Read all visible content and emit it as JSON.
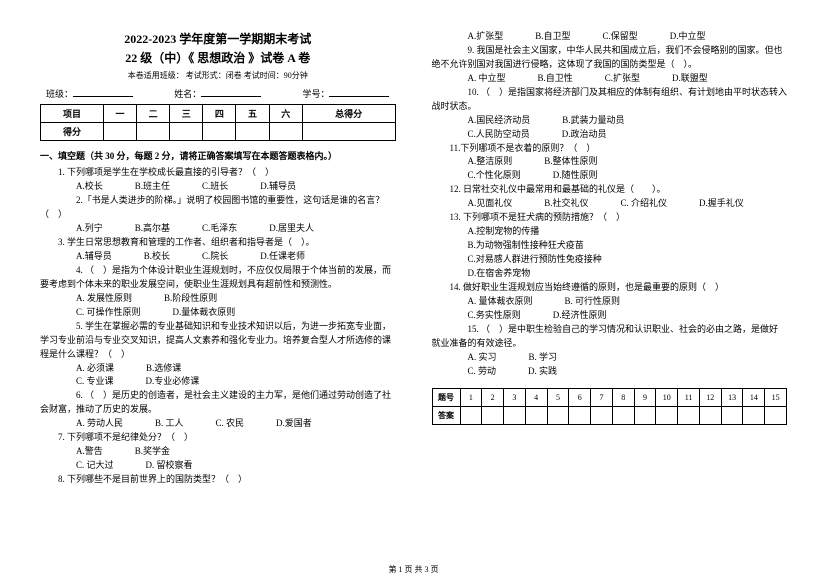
{
  "header": {
    "title1": "2022-2023 学年度第一学期期末考试",
    "title2": "22 级（中）《 思想政治 》试卷 A 卷",
    "meta": "本卷适用班级：        考试形式：闭卷    考试时间：90分钟",
    "class_label": "班级：",
    "name_label": "姓名：",
    "id_label": "学号："
  },
  "score_table": {
    "row_head": "项目",
    "cols": [
      "一",
      "二",
      "三",
      "四",
      "五",
      "六",
      "总得分"
    ],
    "row2_head": "得分"
  },
  "section1_head": "一、填空题（共 30 分，每题 2 分，请将正确答案填写在本题答题表格内。）",
  "left_questions": [
    {
      "stem": "1. 下列哪项是学生在学校成长最直接的引导者？（　）",
      "opts": [
        "A.校长",
        "B.班主任",
        "C.班长",
        "D.辅导员"
      ]
    },
    {
      "stem": "2.「书是人类进步的阶梯。」说明了校园图书馆的重要性，这句话是谁的名言？（　）",
      "wrap": true,
      "opts": [
        "A.列宁",
        "B.高尔基",
        "C.毛泽东",
        "D.居里夫人"
      ]
    },
    {
      "stem": "3. 学生日常思想教育和管理的工作者、组织者和指导者是（　）。",
      "opts": [
        "A.辅导员",
        "B.校长",
        "C.院长",
        "D.任课老师"
      ]
    },
    {
      "stem": "4. （　）是指为个体设计职业生涯规划时，不应仅仅局限于个体当前的发展，而要考虑到个体未来的职业发展空间，使职业生涯规划具有超前性和预测性。",
      "wrap": true,
      "opts": [
        "A. 发展性原则",
        "B.阶段性原则",
        "",
        "",
        "C. 可操作性原则",
        "D.量体裁衣原则"
      ]
    },
    {
      "stem": "5. 学生在掌握必需的专业基础知识和专业技术知识以后，为进一步拓宽专业面，学习专业前沿与专业交叉知识，提高人文素养和强化专业力。培养复合型人才所选修的课程是什么课程？（　）",
      "wrap": true,
      "opts": [
        "A. 必须课",
        "B.选修课",
        "",
        "",
        "C. 专业课",
        "D.专业必修课"
      ]
    },
    {
      "stem": "6. （　）是历史的创造者，是社会主义建设的主力军，是他们通过劳动创造了社会财富，推动了历史的发展。",
      "wrap": true,
      "opts": [
        "A. 劳动人民",
        "B. 工人",
        "C. 农民",
        "D.爱国者"
      ]
    },
    {
      "stem": "7. 下列哪项不是纪律处分？（　）",
      "opts": [
        "A.警告",
        "B.奖学金",
        "",
        "",
        "C. 记大过",
        "D. 留校察看"
      ]
    },
    {
      "stem": "8. 下列哪些不是目前世界上的国防类型？（　）"
    }
  ],
  "right_questions": [
    {
      "opts_only": true,
      "opts": [
        "A.扩张型",
        "B.自卫型",
        "C.保留型",
        "D.中立型"
      ]
    },
    {
      "stem": "9. 我国是社会主义国家，中华人民共和国成立后，我们不会侵略别的国家。但也绝不允许别国对我国进行侵略，这体现了我国的国防类型是（　）。",
      "wrap": true,
      "opts": [
        "A. 中立型",
        "B.自卫性",
        "C.扩张型",
        "D.联盟型"
      ]
    },
    {
      "stem": "10. （　）是指国家将经济部门及其相应的体制有组织、有计划地由平时状态转入战时状态。",
      "wrap": true,
      "opts": [
        "A.国民经济动员",
        "B.武装力量动员",
        "",
        "",
        "C.人民防空动员",
        "D.政治动员"
      ]
    },
    {
      "stem": "11.下列哪项不是衣着的原则？（　）",
      "opts": [
        "A.整洁原则",
        "B.整体性原则",
        "",
        "",
        "C.个性化原则",
        "D.随性原则"
      ]
    },
    {
      "stem": "12. 日常社交礼仪中最常用和最基础的礼仪是（　　）。",
      "opts": [
        "A.见面礼仪",
        "B.社交礼仪",
        "C. 介绍礼仪",
        "D.握手礼仪"
      ]
    },
    {
      "stem": "13. 下列哪项不是狂犬病的预防措施？（　）",
      "opts": [
        "A.控制宠物的传播",
        "",
        "",
        "",
        "B.为动物强制性接种狂犬疫苗",
        "",
        "",
        "",
        "C.对易感人群进行预防性免疫接种",
        "",
        "",
        "",
        "D.在宿舍养宠物"
      ]
    },
    {
      "stem": "14. 做好职业生涯规划应当始终遵循的原则，也是最重要的原则（　）",
      "opts": [
        "A. 量体裁衣原则",
        "B. 可行性原则",
        "",
        "",
        "C.务实性原则",
        "D.经济性原则"
      ]
    },
    {
      "stem": "15. （　）是中职生检验自己的学习情况和认识职业、社会的必由之路，是做好 就业准备的有效途径。",
      "wrap": true,
      "opts": [
        "A. 实习",
        "B. 学习",
        "",
        "",
        "C. 劳动",
        "D. 实践"
      ]
    }
  ],
  "answer_table": {
    "head": "题号",
    "nums": [
      "1",
      "2",
      "3",
      "4",
      "5",
      "6",
      "7",
      "8",
      "9",
      "10",
      "11",
      "12",
      "13",
      "14",
      "15"
    ],
    "row2": "答案"
  },
  "footer": "第 1 页 共 3 页"
}
